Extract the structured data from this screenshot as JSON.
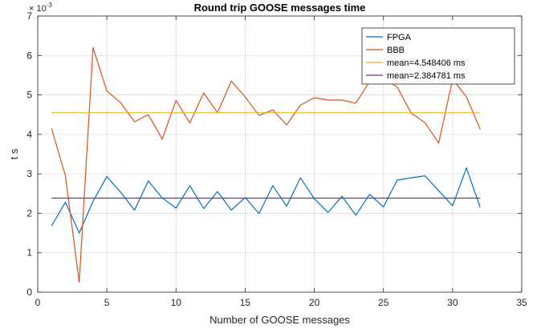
{
  "chart_data": {
    "type": "line",
    "title": "Round trip GOOSE messages time",
    "xlabel": "Number of GOOSE messages",
    "ylabel": "t s",
    "y_exponent_base": "× 10",
    "y_exponent_power": "-3",
    "xlim": [
      0,
      35
    ],
    "ylim": [
      0,
      7
    ],
    "xticks": [
      0,
      5,
      10,
      15,
      20,
      25,
      30,
      35
    ],
    "yticks": [
      0,
      1,
      2,
      3,
      4,
      5,
      6,
      7
    ],
    "grid": true,
    "legend_position": "top-right",
    "series": [
      {
        "name": "FPGA",
        "color": "#0072BD",
        "x": [
          1,
          2,
          3,
          4,
          5,
          6,
          7,
          8,
          9,
          10,
          11,
          12,
          13,
          14,
          15,
          16,
          17,
          18,
          19,
          20,
          21,
          22,
          23,
          24,
          25,
          26,
          27,
          28,
          29,
          30,
          31,
          32
        ],
        "y": [
          1.68,
          2.28,
          1.5,
          2.3,
          2.93,
          2.53,
          2.08,
          2.82,
          2.39,
          2.13,
          2.7,
          2.12,
          2.55,
          2.08,
          2.4,
          1.99,
          2.7,
          2.18,
          2.9,
          2.37,
          2.02,
          2.43,
          1.95,
          2.48,
          2.16,
          2.84,
          2.9,
          2.95,
          2.57,
          2.19,
          3.15,
          2.15
        ]
      },
      {
        "name": "BBB",
        "color": "#D95319",
        "x": [
          1,
          2,
          3,
          4,
          5,
          6,
          7,
          8,
          9,
          10,
          11,
          12,
          13,
          14,
          15,
          16,
          17,
          18,
          19,
          20,
          21,
          22,
          23,
          24,
          25,
          26,
          27,
          28,
          29,
          30,
          31,
          32
        ],
        "y": [
          4.15,
          2.95,
          0.25,
          6.2,
          5.1,
          4.8,
          4.32,
          4.5,
          3.88,
          4.86,
          4.29,
          5.05,
          4.55,
          5.35,
          4.95,
          4.48,
          4.62,
          4.24,
          4.74,
          4.93,
          4.87,
          4.87,
          4.79,
          5.34,
          5.43,
          5.2,
          4.54,
          4.3,
          3.78,
          5.4,
          4.95,
          4.13
        ]
      },
      {
        "name": "mean=4.548406 ms",
        "color": "#EDB120",
        "x": [
          1,
          32
        ],
        "y": [
          4.548406,
          4.548406
        ]
      },
      {
        "name": "mean=2.384781 ms",
        "color": "#7E2F8E",
        "x": [
          1,
          32
        ],
        "y": [
          2.384781,
          2.384781
        ]
      }
    ]
  }
}
